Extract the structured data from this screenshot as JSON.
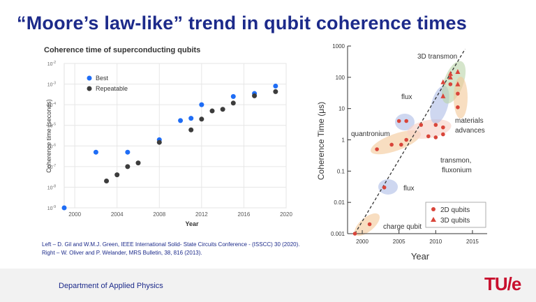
{
  "slide": {
    "title": "“Moore’s law-like” trend in qubit coherence times",
    "references": [
      "Left – D. Gil and W.M.J. Green, IEEE International Solid- State Circuits Conference - (ISSCC) 30 (2020).",
      "Right – W. Oliver and P. Welander, MRS Bulletin, 38, 816 (2013)."
    ],
    "footer": {
      "department": "Department of Applied Physics",
      "logo_text": "TU/e"
    }
  },
  "colors": {
    "title": "#1c2a8a",
    "best": "#1f6df5",
    "repeatable": "#3c3c3c",
    "red": "#d9453a",
    "logo": "#c8102e"
  },
  "chart_data": [
    {
      "type": "scatter",
      "title": "Coherence time of superconducting qubits",
      "xlabel": "Year",
      "ylabel": "Coherence time (seconds)",
      "xlim": [
        1999,
        2020
      ],
      "ylim": [
        1e-09,
        0.01
      ],
      "log_y": true,
      "grid": true,
      "legend_position": "top-left",
      "xticks": [
        "2000",
        "2004",
        "2008",
        "2012",
        "2016",
        "2020"
      ],
      "yticks": [
        {
          "base": "10",
          "exp": "-2",
          "v": 0.01
        },
        {
          "base": "10",
          "exp": "-3",
          "v": 0.001
        },
        {
          "base": "10",
          "exp": "-4",
          "v": 0.0001
        },
        {
          "base": "10",
          "exp": "-5",
          "v": 1e-05
        },
        {
          "base": "10",
          "exp": "-6",
          "v": 1e-06
        },
        {
          "base": "10",
          "exp": "-7",
          "v": 1e-07
        },
        {
          "base": "10",
          "exp": "-8",
          "v": 1e-08
        },
        {
          "base": "10",
          "exp": "-9",
          "v": 1e-09
        }
      ],
      "series": [
        {
          "name": "Best",
          "color": "#1f6df5",
          "points": [
            [
              1999,
              1e-09
            ],
            [
              2002,
              5e-07
            ],
            [
              2005,
              5e-07
            ],
            [
              2008,
              2e-06
            ],
            [
              2010,
              1.7e-05
            ],
            [
              2011,
              2.2e-05
            ],
            [
              2012,
              0.0001
            ],
            [
              2015,
              0.00025
            ],
            [
              2017,
              0.00035
            ],
            [
              2019,
              0.0008
            ]
          ]
        },
        {
          "name": "Repeatable",
          "color": "#3c3c3c",
          "points": [
            [
              2003,
              2e-08
            ],
            [
              2004,
              4e-08
            ],
            [
              2005,
              1e-07
            ],
            [
              2006,
              1.5e-07
            ],
            [
              2008,
              1.5e-06
            ],
            [
              2011,
              6e-06
            ],
            [
              2012,
              2e-05
            ],
            [
              2013,
              5e-05
            ],
            [
              2014,
              6e-05
            ],
            [
              2015,
              0.00012
            ],
            [
              2017,
              0.00027
            ],
            [
              2019,
              0.00043
            ]
          ]
        }
      ]
    },
    {
      "type": "scatter",
      "title": "",
      "xlabel": "Year",
      "ylabel": "Coherence Time (μs)",
      "xlim": [
        1998,
        2017
      ],
      "ylim": [
        0.001,
        1000
      ],
      "log_y": true,
      "legend_position": "bottom-right",
      "xticks": [
        "2000",
        "2005",
        "2010",
        "2015"
      ],
      "yticks": [
        {
          "label": "1000",
          "v": 1000
        },
        {
          "label": "100",
          "v": 100
        },
        {
          "label": "10",
          "v": 10
        },
        {
          "label": "1",
          "v": 1
        },
        {
          "label": "0.1",
          "v": 0.1
        },
        {
          "label": "0.01",
          "v": 0.01
        },
        {
          "label": "0.001",
          "v": 0.001
        }
      ],
      "trend_line": [
        [
          1999,
          0.001
        ],
        [
          2014,
          800
        ]
      ],
      "series": [
        {
          "name": "2D qubits",
          "marker": "circle",
          "points": [
            [
              1999,
              0.001
            ],
            [
              2001,
              0.002
            ],
            [
              2002,
              0.5
            ],
            [
              2004,
              0.7
            ],
            [
              2005,
              4
            ],
            [
              2005.3,
              0.7
            ],
            [
              2006,
              1
            ],
            [
              2006,
              4
            ],
            [
              2008,
              3
            ],
            [
              2009,
              1.3
            ],
            [
              2010,
              1.2
            ],
            [
              2010,
              3
            ],
            [
              2011,
              2.5
            ],
            [
              2011,
              1.5
            ],
            [
              2012,
              60
            ],
            [
              2013,
              30
            ],
            [
              2013,
              11
            ],
            [
              2003,
              0.03
            ]
          ]
        },
        {
          "name": "3D qubits",
          "marker": "triangle",
          "points": [
            [
              2011,
              70
            ],
            [
              2011,
              25
            ],
            [
              2012,
              100
            ],
            [
              2012,
              130
            ],
            [
              2013,
              150
            ],
            [
              2013,
              60
            ]
          ]
        }
      ],
      "annotations": [
        "3D transmon",
        "flux",
        "quantronium",
        "materials advances",
        "transmon, fluxonium",
        "flux",
        "charge qubit"
      ]
    }
  ]
}
